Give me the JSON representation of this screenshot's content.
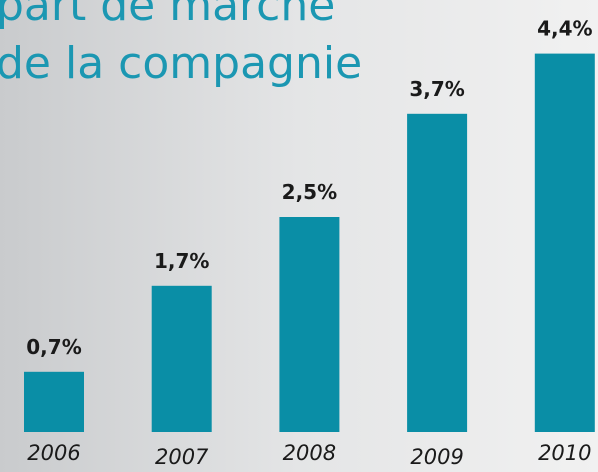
{
  "chart_data": {
    "type": "bar",
    "title": [
      "part de marché",
      "de la compagnie"
    ],
    "categories": [
      "2006",
      "2007",
      "2008",
      "2009",
      "2010"
    ],
    "values": [
      0.7,
      1.7,
      2.5,
      3.7,
      4.4
    ],
    "value_labels": [
      "0,7%",
      "1,7%",
      "2,5%",
      "3,7%",
      "4,4%"
    ],
    "color": "#0a8ea6"
  }
}
